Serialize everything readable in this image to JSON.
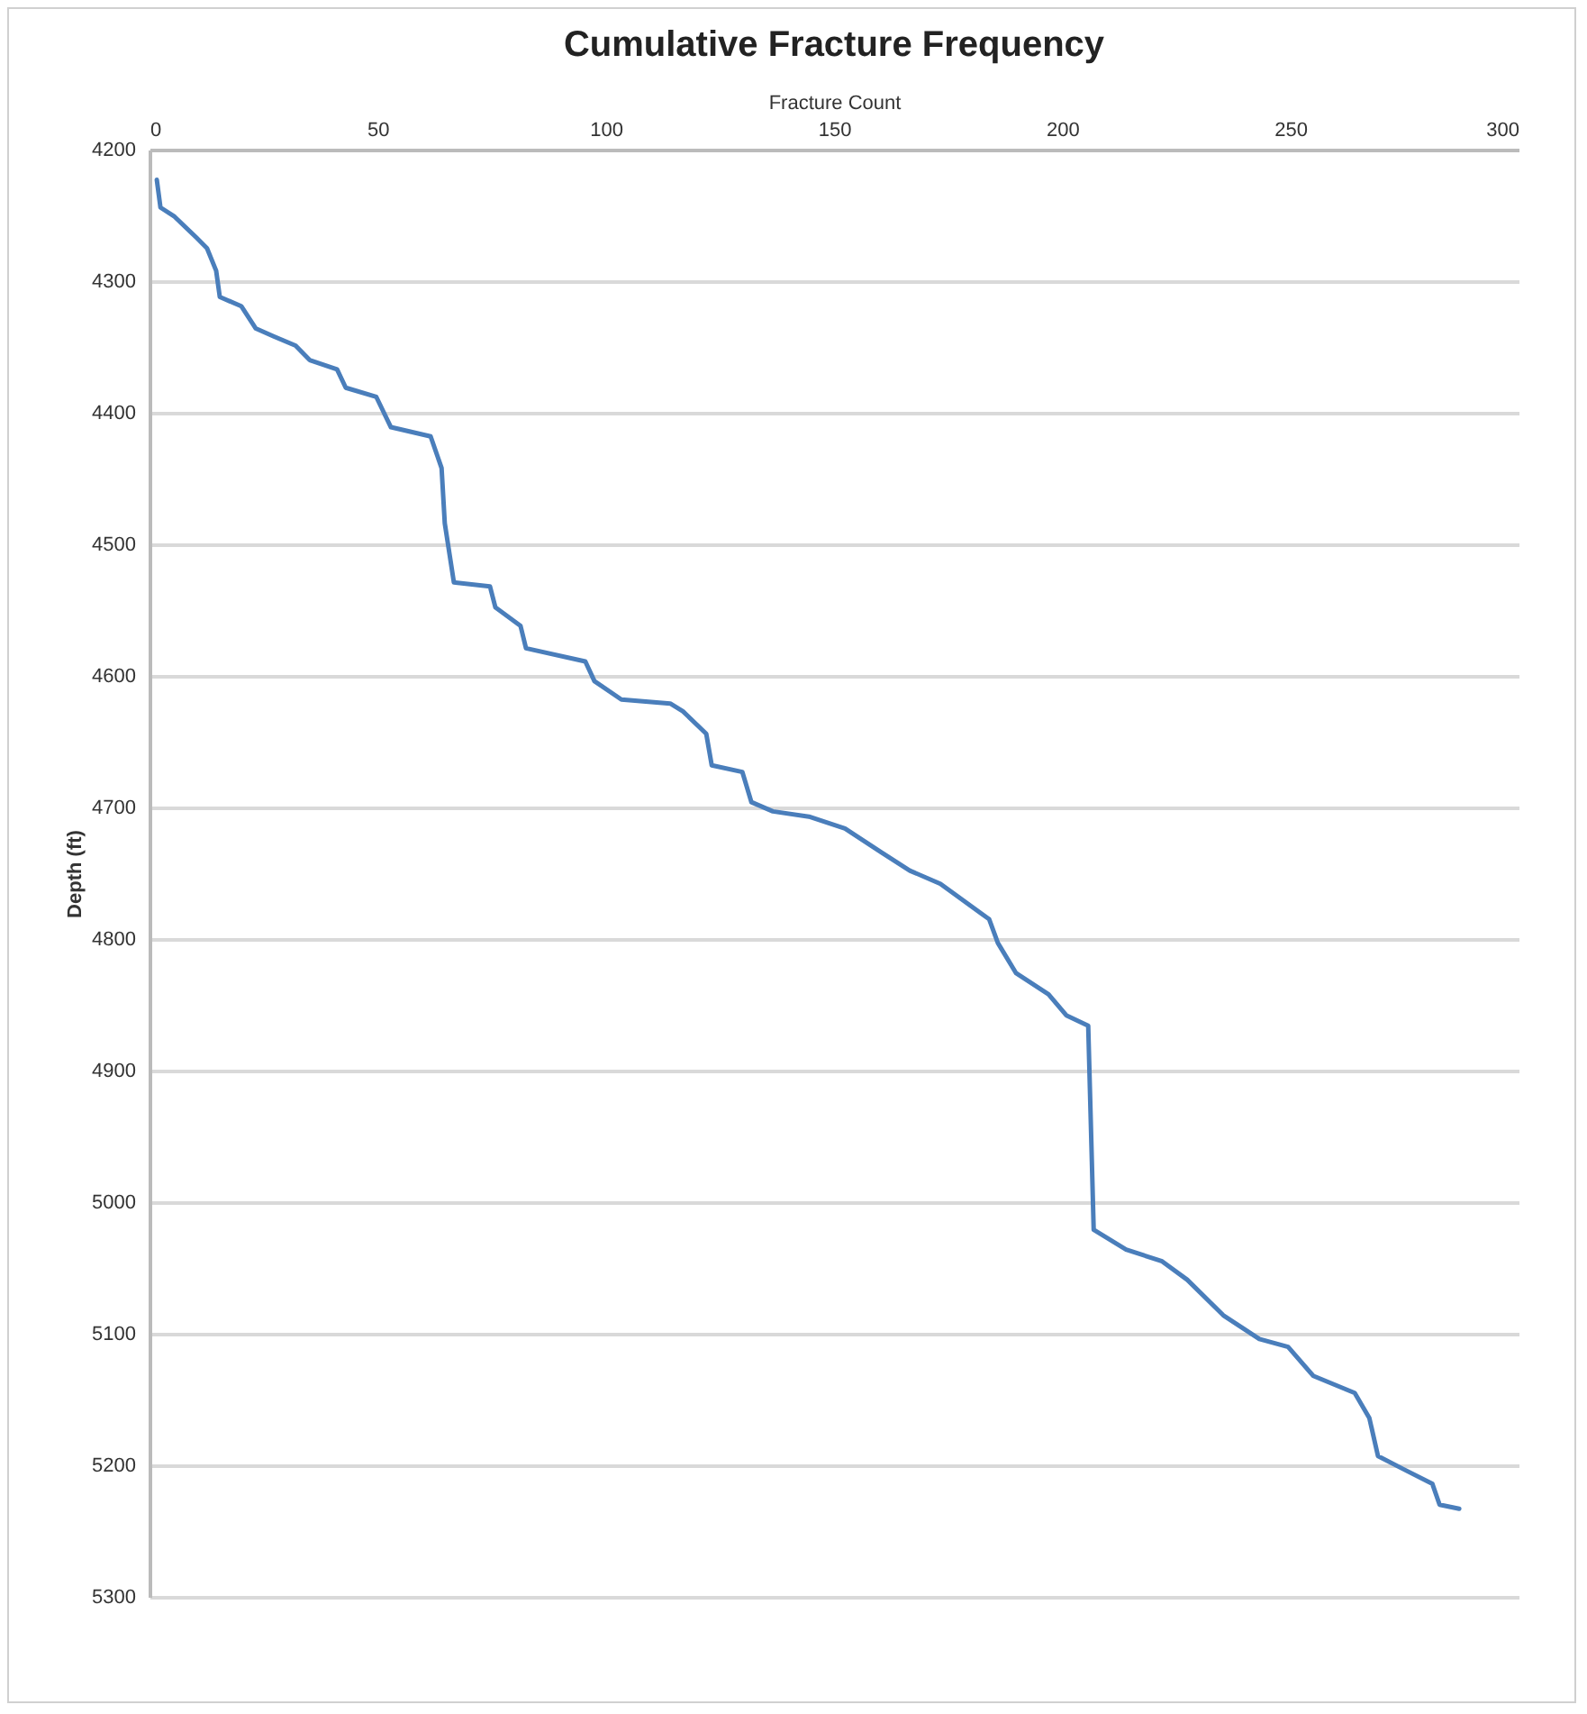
{
  "chart_data": {
    "type": "line",
    "title": "Cumulative Fracture Frequency",
    "xlabel": "Fracture Count",
    "ylabel": "Depth (ft)",
    "xlim": [
      0,
      300
    ],
    "xticks": [
      0,
      50,
      100,
      150,
      200,
      250,
      300
    ],
    "ylim": [
      5300,
      4200
    ],
    "yticks": [
      4200,
      4300,
      4400,
      4500,
      4600,
      4700,
      4800,
      4900,
      5000,
      5100,
      5200,
      5300
    ],
    "grid": "y",
    "series": [
      {
        "color": "#4a7ebb",
        "x": [
          1.6,
          2.4,
          5.5,
          10.3,
          12.6,
          14.6,
          15.4,
          20.1,
          23.3,
          27.2,
          32,
          35.1,
          41.1,
          43,
          49.7,
          52.9,
          61.6,
          64,
          64.7,
          66.7,
          74.6,
          75.8,
          81.3,
          82.5,
          95.5,
          97.5,
          103.4,
          114.1,
          116.9,
          122,
          123.2,
          129.9,
          131.9,
          136.6,
          144.5,
          152.4,
          160.3,
          166.6,
          173.3,
          184,
          185.9,
          189.9,
          197,
          200.9,
          205.7,
          206.9,
          214,
          221.9,
          227.4,
          235.3,
          243.2,
          249.5,
          255,
          264.1,
          267.3,
          269.2,
          274.8,
          281.1,
          282.7,
          287
        ],
        "values": [
          4223,
          4244,
          4251,
          4267,
          4275,
          4292,
          4312,
          4319,
          4336,
          4342,
          4349,
          4360,
          4367,
          4381,
          4388,
          4411,
          4418,
          4442,
          4484,
          4529,
          4532,
          4548,
          4562,
          4579,
          4589,
          4604,
          4618,
          4621,
          4627,
          4644,
          4668,
          4673,
          4696,
          4703,
          4707,
          4716,
          4734,
          4748,
          4758,
          4785,
          4803,
          4826,
          4842,
          4858,
          4866,
          5021,
          5036,
          5045,
          5059,
          5086,
          5104,
          5110,
          5132,
          5145,
          5164,
          5193,
          5203,
          5214,
          5230,
          5233
        ]
      }
    ]
  }
}
